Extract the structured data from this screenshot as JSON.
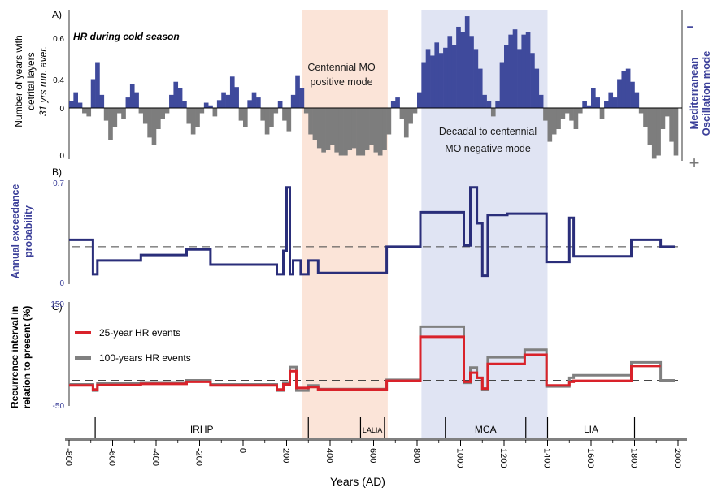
{
  "chart_data": [
    {
      "panel": "A",
      "type": "area",
      "panel_label": "A)",
      "title": "HR during cold season",
      "ylabel_line1": "Number of years with",
      "ylabel_line2": "detrital layers",
      "ylabel_line3": "31 yrs run. aver.",
      "yticks": [
        "0.6",
        "0.4",
        "0",
        "0"
      ],
      "right_label_line1": "Mediterranean",
      "right_label_line2": "Oscillation mode",
      "right_sign_top": "−",
      "right_sign_bottom": "+",
      "annotations": {
        "positive_line1": "Centennial MO",
        "positive_line2": "positive mode",
        "negative_line1": "Decadal to centennial",
        "negative_line2": "MO negative mode"
      },
      "colors": {
        "above": "#3f4a9c",
        "below": "#7d7d7d"
      },
      "x": [
        -800,
        -780,
        -760,
        -740,
        -720,
        -700,
        -680,
        -660,
        -640,
        -620,
        -600,
        -580,
        -560,
        -540,
        -520,
        -500,
        -480,
        -460,
        -440,
        -420,
        -400,
        -380,
        -360,
        -340,
        -320,
        -300,
        -280,
        -260,
        -240,
        -220,
        -200,
        -180,
        -160,
        -140,
        -120,
        -100,
        -80,
        -60,
        -40,
        -20,
        0,
        20,
        40,
        60,
        80,
        100,
        120,
        140,
        160,
        180,
        200,
        220,
        240,
        260,
        280,
        300,
        320,
        340,
        360,
        380,
        400,
        420,
        440,
        460,
        480,
        500,
        520,
        540,
        560,
        580,
        600,
        620,
        640,
        660,
        680,
        700,
        720,
        740,
        760,
        780,
        800,
        820,
        840,
        860,
        880,
        900,
        920,
        940,
        960,
        980,
        1000,
        1020,
        1040,
        1060,
        1080,
        1100,
        1120,
        1140,
        1160,
        1180,
        1200,
        1220,
        1240,
        1260,
        1280,
        1300,
        1320,
        1340,
        1360,
        1380,
        1400,
        1420,
        1440,
        1460,
        1480,
        1500,
        1520,
        1540,
        1560,
        1580,
        1600,
        1620,
        1640,
        1660,
        1680,
        1700,
        1720,
        1740,
        1760,
        1780,
        1800,
        1820,
        1840,
        1860,
        1880,
        1900,
        1920,
        1940,
        1960,
        1980
      ],
      "y": [
        0.05,
        0.12,
        0.04,
        -0.05,
        -0.08,
        0.22,
        0.35,
        0.1,
        -0.12,
        -0.3,
        -0.18,
        -0.05,
        -0.1,
        0.08,
        0.18,
        0.12,
        -0.05,
        -0.15,
        -0.28,
        -0.35,
        -0.2,
        -0.1,
        -0.05,
        0.1,
        0.2,
        0.15,
        0.05,
        -0.15,
        -0.25,
        -0.18,
        -0.05,
        0.04,
        0.02,
        -0.08,
        0.06,
        0.12,
        0.1,
        0.24,
        0.16,
        -0.12,
        -0.18,
        0.06,
        0.12,
        0.08,
        -0.12,
        -0.25,
        -0.18,
        -0.05,
        0.05,
        -0.12,
        -0.22,
        0.1,
        0.25,
        0.15,
        -0.05,
        -0.25,
        -0.3,
        -0.38,
        -0.42,
        -0.4,
        -0.35,
        -0.42,
        -0.45,
        -0.45,
        -0.4,
        -0.38,
        -0.45,
        -0.45,
        -0.4,
        -0.35,
        -0.42,
        -0.45,
        -0.4,
        -0.25,
        0.05,
        0.08,
        -0.1,
        -0.28,
        -0.15,
        -0.05,
        0.12,
        0.35,
        0.45,
        0.4,
        0.5,
        0.42,
        0.46,
        0.55,
        0.48,
        0.62,
        0.58,
        0.7,
        0.55,
        0.45,
        0.3,
        0.1,
        0.05,
        -0.08,
        0.05,
        0.35,
        0.48,
        0.56,
        0.6,
        0.45,
        0.56,
        0.58,
        0.42,
        0.3,
        0.1,
        -0.12,
        -0.32,
        -0.25,
        -0.2,
        -0.1,
        -0.05,
        -0.12,
        -0.2,
        -0.05,
        0.05,
        0.02,
        0.15,
        0.08,
        -0.1,
        0.05,
        0.12,
        0.08,
        0.22,
        0.28,
        0.3,
        0.2,
        0.12,
        -0.05,
        -0.18,
        -0.35,
        -0.48,
        -0.45,
        -0.2,
        -0.08,
        -0.32,
        -0.45
      ],
      "ylim": [
        -0.5,
        0.75
      ]
    },
    {
      "panel": "B",
      "type": "line",
      "panel_label": "B)",
      "ylabel_line1": "Annual exceedance",
      "ylabel_line2": "probability",
      "yticks": [
        "0.7",
        "0"
      ],
      "ylim": [
        0,
        0.7
      ],
      "reference_line": 0.23,
      "colors": {
        "line": "#2a2e7a",
        "reference": "#444444"
      },
      "series": [
        {
          "x": [
            -800,
            -690,
            -690,
            -670,
            -670,
            -470,
            -470,
            -260,
            -260,
            -150,
            -150,
            155,
            155,
            185,
            185,
            200,
            200,
            215,
            215,
            230,
            230,
            265,
            265,
            300,
            300,
            345,
            345,
            660,
            660,
            815,
            815,
            1015,
            1015,
            1045,
            1045,
            1075,
            1075,
            1100,
            1100,
            1125,
            1125,
            1215,
            1215,
            1395,
            1395,
            1500,
            1500,
            1520,
            1520,
            1785,
            1785,
            1920,
            1920,
            1985
          ],
          "y": [
            0.28,
            0.28,
            0.03,
            0.03,
            0.13,
            0.13,
            0.17,
            0.17,
            0.21,
            0.21,
            0.1,
            0.1,
            0.03,
            0.03,
            0.2,
            0.2,
            0.66,
            0.66,
            0.03,
            0.03,
            0.13,
            0.13,
            0.03,
            0.03,
            0.13,
            0.13,
            0.04,
            0.04,
            0.23,
            0.23,
            0.48,
            0.48,
            0.24,
            0.24,
            0.66,
            0.66,
            0.4,
            0.4,
            0.02,
            0.02,
            0.46,
            0.46,
            0.47,
            0.47,
            0.12,
            0.12,
            0.44,
            0.44,
            0.16,
            0.16,
            0.28,
            0.28,
            0.23,
            0.23
          ]
        }
      ]
    },
    {
      "panel": "C",
      "type": "line",
      "panel_label": "C)",
      "ylabel_line1": "Recurrence interval in",
      "ylabel_line2": "relation to present (%)",
      "yticks": [
        "150",
        "-50"
      ],
      "ylim": [
        -50,
        150
      ],
      "reference_line": 0,
      "colors": {
        "red": "#d9222a",
        "gray": "#808080",
        "reference": "#444444"
      },
      "series": [
        {
          "name": "25-year HR events",
          "x": [
            -800,
            -690,
            -690,
            -670,
            -670,
            -470,
            -470,
            -260,
            -260,
            -150,
            -150,
            155,
            155,
            185,
            185,
            215,
            215,
            245,
            245,
            300,
            300,
            345,
            345,
            660,
            660,
            815,
            815,
            1015,
            1015,
            1045,
            1045,
            1075,
            1075,
            1100,
            1100,
            1125,
            1125,
            1215,
            1215,
            1295,
            1295,
            1395,
            1395,
            1500,
            1500,
            1520,
            1520,
            1785,
            1785,
            1920
          ],
          "y": [
            -10,
            -10,
            -18,
            -18,
            -9,
            -9,
            -7,
            -7,
            -3,
            -3,
            -10,
            -10,
            -18,
            -18,
            -8,
            -8,
            18,
            18,
            -15,
            -15,
            -13,
            -13,
            -18,
            -18,
            -1,
            -1,
            85,
            85,
            -3,
            -3,
            15,
            15,
            5,
            5,
            -16,
            -16,
            32,
            32,
            32,
            32,
            50,
            50,
            -10,
            -10,
            -3,
            -3,
            -1,
            -1,
            28,
            28
          ]
        },
        {
          "name": "100-years HR events",
          "x": [
            -800,
            -690,
            -690,
            -670,
            -670,
            -470,
            -470,
            -260,
            -260,
            -150,
            -150,
            155,
            155,
            185,
            185,
            215,
            215,
            245,
            245,
            300,
            300,
            345,
            345,
            660,
            660,
            815,
            815,
            1015,
            1015,
            1045,
            1045,
            1075,
            1075,
            1100,
            1100,
            1125,
            1125,
            1215,
            1215,
            1295,
            1295,
            1395,
            1395,
            1500,
            1500,
            1520,
            1520,
            1785,
            1785,
            1920,
            1920,
            1985
          ],
          "y": [
            -8,
            -8,
            -20,
            -20,
            -6,
            -6,
            -4,
            -4,
            0,
            0,
            -8,
            -8,
            -20,
            -20,
            -4,
            -4,
            26,
            26,
            -20,
            -20,
            -10,
            -10,
            -17,
            -17,
            1,
            1,
            105,
            105,
            -5,
            -5,
            25,
            25,
            5,
            5,
            -18,
            -18,
            45,
            45,
            45,
            45,
            60,
            60,
            -12,
            -12,
            5,
            5,
            10,
            10,
            35,
            35,
            0,
            0
          ]
        }
      ]
    }
  ],
  "shading": {
    "positive": {
      "from": 270,
      "to": 665,
      "color": "#fbe4d8"
    },
    "negative": {
      "from": 820,
      "to": 1400,
      "color": "#e0e4f3"
    }
  },
  "periods": [
    {
      "label": "IRHP",
      "from": -680,
      "to": 300
    },
    {
      "label": "LALIA",
      "from": 540,
      "to": 650
    },
    {
      "label": "MCA",
      "from": 930,
      "to": 1300
    },
    {
      "label": "LIA",
      "from": 1400,
      "to": 1800
    }
  ],
  "period_dividers": [
    -680,
    300,
    540,
    650,
    930,
    1300,
    1400,
    1800
  ],
  "x_axis": {
    "title": "Years (AD)",
    "ticks": [
      "-800",
      "-600",
      "-400",
      "-200",
      "0",
      "200",
      "400",
      "600",
      "800",
      "1000",
      "1200",
      "1400",
      "1600",
      "1800",
      "2000"
    ],
    "range": [
      -800,
      2000
    ]
  }
}
